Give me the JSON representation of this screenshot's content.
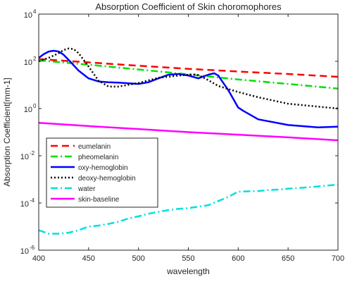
{
  "chart_data": {
    "type": "line",
    "title": "Absorption Coefficient of Skin choromophores",
    "xlabel": "wavelength",
    "ylabel": "Absorption Coefficient[mm-1]",
    "xlim": [
      400,
      700
    ],
    "ylim": [
      1e-06,
      10000.0
    ],
    "yscale": "log",
    "x_ticks": [
      400,
      450,
      500,
      550,
      600,
      650,
      700
    ],
    "y_ticks": [
      {
        "base": "10",
        "exp": "-6",
        "value": 1e-06
      },
      {
        "base": "10",
        "exp": "-4",
        "value": 0.0001
      },
      {
        "base": "10",
        "exp": "-2",
        "value": 0.01
      },
      {
        "base": "10",
        "exp": "0",
        "value": 1
      },
      {
        "base": "10",
        "exp": "2",
        "value": 100
      },
      {
        "base": "10",
        "exp": "4",
        "value": 10000
      }
    ],
    "legend_position": "lower-left",
    "grid": false,
    "series": [
      {
        "name": "eumelanin",
        "color": "#ff0000",
        "style": "dashed",
        "x": [
          400,
          450,
          500,
          550,
          600,
          650,
          700
        ],
        "y": [
          125,
          90,
          65,
          48,
          37,
          29,
          22
        ]
      },
      {
        "name": "pheomelanin",
        "color": "#00e000",
        "style": "dashdot",
        "x": [
          400,
          450,
          500,
          550,
          600,
          650,
          700
        ],
        "y": [
          110,
          72,
          45,
          28,
          17,
          11,
          7
        ]
      },
      {
        "name": "oxy-hemoglobin",
        "color": "#0000ff",
        "style": "solid",
        "x": [
          400,
          405,
          410,
          415,
          420,
          425,
          430,
          440,
          450,
          460,
          470,
          480,
          500,
          510,
          520,
          530,
          540,
          550,
          560,
          570,
          576,
          580,
          590,
          600,
          605,
          620,
          650,
          680,
          700
        ],
        "y": [
          140,
          200,
          260,
          280,
          260,
          190,
          115,
          40,
          19,
          14,
          13,
          12.5,
          11,
          13,
          19,
          27,
          29,
          25,
          19,
          27,
          31,
          25,
          6,
          1.1,
          0.8,
          0.35,
          0.2,
          0.16,
          0.17
        ]
      },
      {
        "name": "deoxy-hemoglobin",
        "color": "#000000",
        "style": "dotted",
        "x": [
          400,
          410,
          420,
          425,
          430,
          435,
          440,
          450,
          460,
          470,
          480,
          500,
          520,
          540,
          555,
          560,
          570,
          580,
          600,
          620,
          650,
          680,
          700
        ],
        "y": [
          100,
          140,
          220,
          300,
          350,
          330,
          220,
          60,
          15,
          8.5,
          8.5,
          12,
          20,
          25,
          28,
          26,
          16,
          9,
          5,
          3,
          1.6,
          1.2,
          1.0
        ]
      },
      {
        "name": "water",
        "color": "#00e0e0",
        "style": "dashdot",
        "x": [
          400,
          410,
          420,
          430,
          440,
          450,
          460,
          470,
          480,
          490,
          500,
          510,
          520,
          530,
          540,
          550,
          560,
          570,
          580,
          590,
          600,
          610,
          620,
          630,
          640,
          650,
          660,
          670,
          680,
          690,
          700
        ],
        "y": [
          7e-06,
          5e-06,
          5e-06,
          5.5e-06,
          7e-06,
          1e-05,
          1.1e-05,
          1.3e-05,
          1.6e-05,
          2.2e-05,
          2.7e-05,
          3.5e-05,
          4.2e-05,
          5e-05,
          5.6e-05,
          6e-05,
          7e-05,
          8e-05,
          0.00012,
          0.00018,
          0.0003,
          0.00031,
          0.00032,
          0.00035,
          0.00037,
          0.0004,
          0.00043,
          0.00046,
          0.0005,
          0.00055,
          0.0006
        ]
      },
      {
        "name": "skin-baseline",
        "color": "#ff00ff",
        "style": "solid",
        "x": [
          400,
          450,
          500,
          550,
          600,
          650,
          700
        ],
        "y": [
          0.25,
          0.18,
          0.135,
          0.1,
          0.078,
          0.06,
          0.045
        ]
      }
    ]
  }
}
